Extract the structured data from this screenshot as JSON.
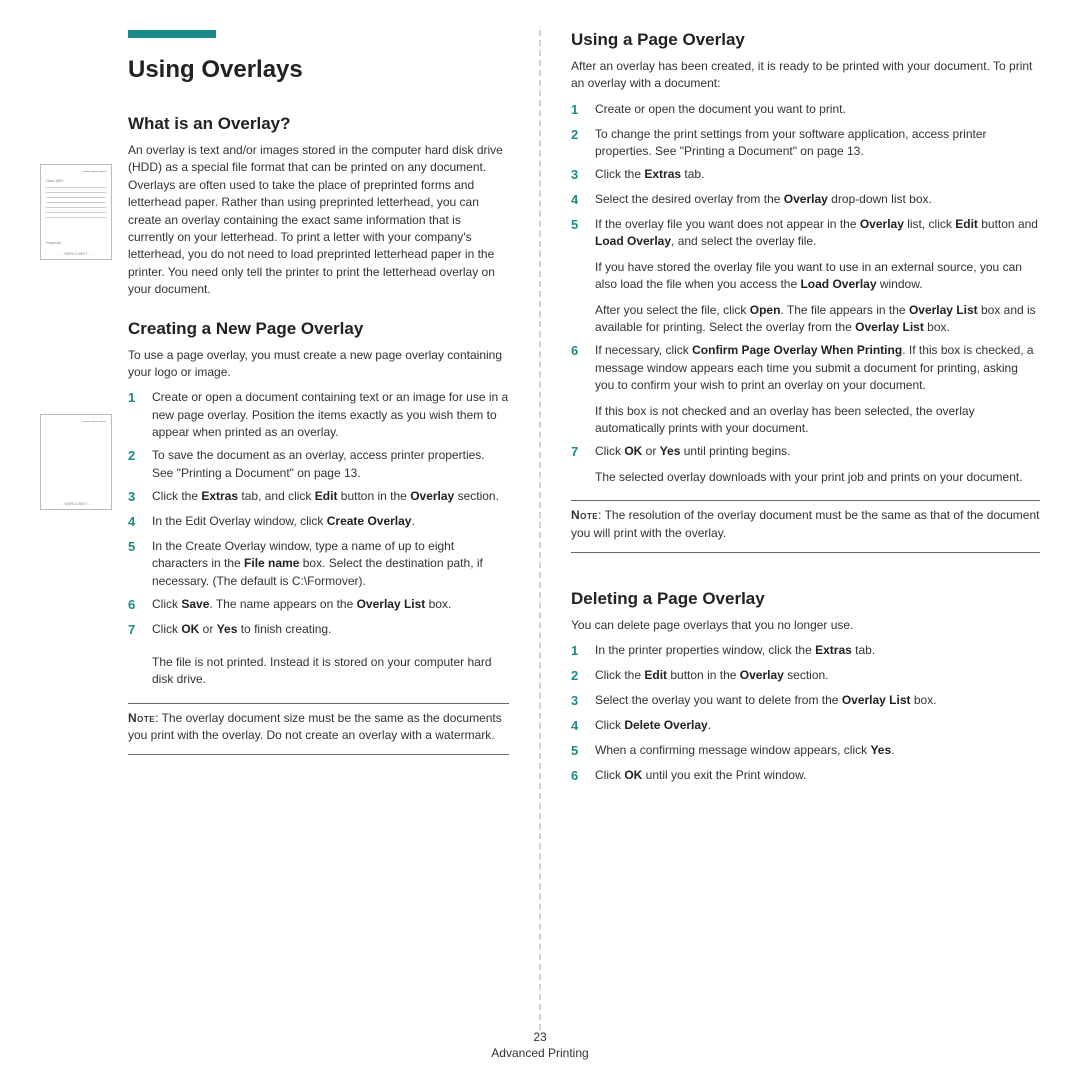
{
  "accent_color": "#1a8a8a",
  "page_number": "23",
  "footer_section": "Advanced Printing",
  "left": {
    "title": "Using Overlays",
    "s1": {
      "heading": "What is an Overlay?",
      "body": "An overlay is text and/or images stored in the computer hard disk drive (HDD) as a special file format that can be printed on any document. Overlays are often used to take the place of preprinted forms and letterhead paper. Rather than using preprinted letterhead, you can create an overlay containing the exact same information that is currently on your letterhead. To print a letter with your company's letterhead, you do not need to load preprinted letterhead paper in the printer. You need only tell the printer to print the letterhead overlay on your document."
    },
    "s2": {
      "heading": "Creating a New Page Overlay",
      "intro": "To use a page overlay, you must create a new page overlay containing your logo or image.",
      "steps": [
        "Create or open a document containing text or an image for use in a new page overlay. Position the items exactly as you wish them to appear when printed as an overlay.",
        "To save the document as an overlay, access printer properties. See \"Printing a Document\" on page 13.",
        "Click the <b>Extras</b> tab, and click <b>Edit</b> button in the <b>Overlay</b> section.",
        "In the Edit Overlay window, click <b>Create Overlay</b>.",
        "In the Create Overlay window, type a name of up to eight characters in the <b>File name</b> box. Select the destination path, if necessary. (The default is C:\\Formover).",
        "Click <b>Save</b>. The name appears on the <b>Overlay List</b> box.",
        "Click <b>OK</b> or <b>Yes</b> to finish creating."
      ],
      "trailing": "The file is not printed. Instead it is stored on your computer hard disk drive.",
      "note_label": "Note",
      "note": ": The overlay document size must be the same as the documents you print with the overlay. Do not create an overlay with a watermark."
    }
  },
  "right": {
    "s1": {
      "heading": "Using a Page Overlay",
      "intro": "After an overlay has been created, it is ready to be printed with your document. To print an overlay with a document:",
      "steps": [
        "Create or open the document you want to print.",
        "To change the print settings from your software application, access printer properties. See \"Printing a Document\" on page 13.",
        "Click the <b>Extras</b> tab.",
        "Select the desired overlay from the <b>Overlay</b> drop-down list box.",
        "If the overlay file you want does not appear in the <b>Overlay</b> list, click <b>Edit</b> button and <b>Load Overlay</b>, and select the overlay file.<span class=\"cont\">If you have stored the overlay file you want to use in an external source, you can also load the file when you access the <b>Load Overlay</b> window.</span><span class=\"cont\">After you select the file, click <b>Open</b>. The file appears in the <b>Overlay List</b> box and is available for printing. Select the overlay from the <b>Overlay List</b> box.</span>",
        "If necessary, click <b>Confirm Page Overlay When Printing</b>. If this box is checked, a message window appears each time you submit a document for printing, asking you to confirm your wish to print an overlay on your document.<span class=\"cont\">If this box is not checked and an overlay has been selected, the overlay automatically prints with your document.</span>",
        "Click <b>OK</b> or <b>Yes</b> until printing begins.<span class=\"cont\">The selected overlay downloads with your print job and prints on your document.</span>"
      ],
      "note_label": "Note",
      "note": ": The resolution of the overlay document must be the same as that of the document you will print with the overlay."
    },
    "s2": {
      "heading": "Deleting a Page Overlay",
      "intro": "You can delete page overlays that you no longer use.",
      "steps": [
        "In the printer properties window, click the <b>Extras</b> tab.",
        "Click the <b>Edit</b> button in the <b>Overlay</b> section.",
        "Select the overlay you want to delete from the <b>Overlay List</b> box.",
        "Click <b>Delete Overlay</b>.",
        "When a confirming message window appears, click <b>Yes</b>.",
        "Click <b>OK</b> until you exit the Print window."
      ]
    }
  },
  "thumb": {
    "dear": "Dear ABC",
    "regards": "Regards",
    "footer": "WORLD BEST"
  }
}
